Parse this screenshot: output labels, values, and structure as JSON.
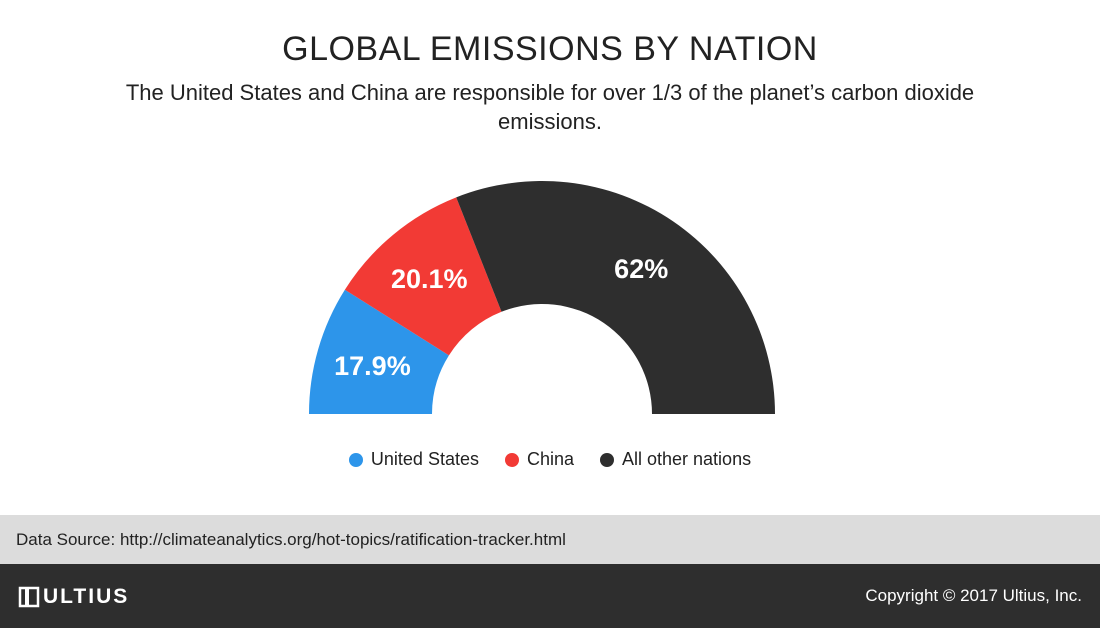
{
  "title": "GLOBAL EMISSIONS BY NATION",
  "subtitle": "The United States and China are responsible for over 1/3 of the planet’s carbon dioxide emissions.",
  "chart_data": {
    "type": "pie",
    "variant": "half-donut",
    "title": "GLOBAL EMISSIONS BY NATION",
    "categories": [
      "United States",
      "China",
      "All other nations"
    ],
    "values": [
      17.9,
      20.1,
      62
    ],
    "labels": [
      "17.9%",
      "20.1%",
      "62%"
    ],
    "colors": [
      "#2d95ea",
      "#f23a35",
      "#2e2e2e"
    ],
    "legend_position": "bottom"
  },
  "legend": [
    {
      "label": "United States",
      "color": "#2d95ea"
    },
    {
      "label": "China",
      "color": "#f23a35"
    },
    {
      "label": "All other nations",
      "color": "#2e2e2e"
    }
  ],
  "source": "Data Source: http://climateanalytics.org/hot-topics/ratification-tracker.html",
  "footer": {
    "logo_text": "ULTIUS",
    "logo_icon": "ultius-logo-icon",
    "copyright": "Copyright © 2017 Ultius, Inc."
  }
}
